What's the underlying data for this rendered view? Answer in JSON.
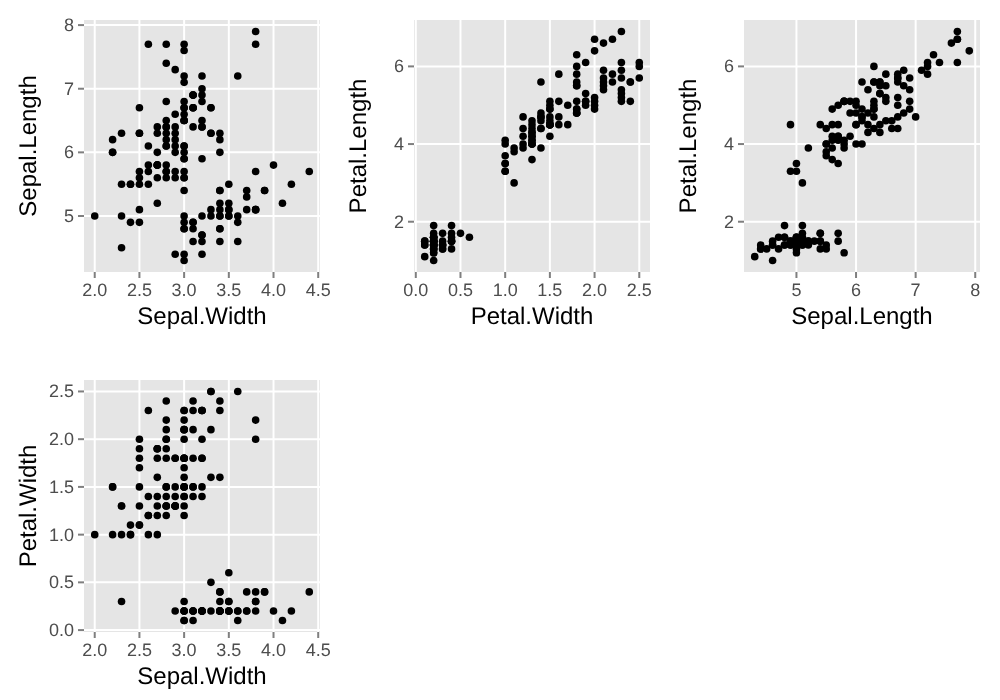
{
  "chart_data": [
    {
      "type": "scatter",
      "xlabel": "Sepal.Width",
      "ylabel": "Sepal.Length",
      "grid": true,
      "marker": "circle",
      "xlim": [
        1.88,
        4.52
      ],
      "ylim": [
        4.12,
        8.08
      ],
      "xticks": [
        {
          "value": 2,
          "label": "2.0"
        },
        {
          "value": 2.5,
          "label": "2.5"
        },
        {
          "value": 3,
          "label": "3.0"
        },
        {
          "value": 3.5,
          "label": "3.5"
        },
        {
          "value": 4,
          "label": "4.0"
        },
        {
          "value": 4.5,
          "label": "4.5"
        }
      ],
      "yticks": [
        5,
        6,
        7,
        8
      ],
      "series": [
        {
          "color": "#000000",
          "x": [
            3.5,
            3.0,
            3.2,
            3.1,
            3.6,
            3.9,
            3.4,
            3.4,
            2.9,
            3.1,
            3.7,
            3.4,
            3.0,
            3.0,
            4.0,
            4.4,
            3.9,
            3.5,
            3.8,
            3.8,
            3.4,
            3.7,
            3.6,
            3.3,
            3.4,
            3.0,
            3.4,
            3.5,
            3.4,
            3.2,
            3.1,
            3.4,
            4.1,
            4.2,
            3.1,
            3.2,
            3.5,
            3.6,
            3.0,
            3.4,
            3.5,
            2.3,
            3.2,
            3.5,
            3.8,
            3.0,
            3.8,
            3.2,
            3.7,
            3.3,
            3.2,
            3.2,
            3.1,
            2.3,
            2.8,
            2.8,
            3.3,
            2.4,
            2.9,
            2.7,
            2.0,
            3.0,
            2.2,
            2.9,
            2.9,
            3.1,
            3.0,
            2.7,
            2.2,
            2.5,
            3.2,
            2.8,
            2.5,
            2.8,
            2.9,
            3.0,
            2.8,
            3.0,
            2.9,
            2.6,
            2.4,
            2.4,
            2.7,
            2.7,
            3.0,
            3.4,
            3.1,
            2.3,
            3.0,
            2.5,
            2.6,
            3.0,
            2.6,
            2.3,
            2.7,
            3.0,
            2.9,
            2.9,
            2.5,
            2.8,
            3.3,
            2.7,
            3.0,
            2.9,
            3.0,
            3.0,
            2.5,
            2.9,
            2.5,
            3.6,
            3.2,
            2.7,
            3.0,
            2.5,
            2.8,
            3.2,
            3.0,
            3.8,
            2.6,
            2.2,
            3.2,
            2.8,
            2.8,
            2.7,
            3.3,
            3.2,
            2.8,
            3.0,
            2.8,
            3.0,
            2.8,
            3.8,
            2.8,
            2.8,
            2.6,
            3.0,
            3.4,
            3.1,
            3.0,
            3.1,
            3.1,
            3.1,
            2.7,
            3.2,
            3.3,
            3.0,
            2.5,
            3.0,
            3.4,
            3.0
          ],
          "values": [
            5.1,
            4.9,
            4.7,
            4.6,
            5.0,
            5.4,
            4.6,
            5.0,
            4.4,
            4.9,
            5.4,
            4.8,
            4.8,
            4.3,
            5.8,
            5.7,
            5.4,
            5.1,
            5.7,
            5.1,
            5.4,
            5.1,
            4.6,
            5.1,
            4.8,
            5.0,
            5.0,
            5.2,
            5.2,
            4.7,
            4.8,
            5.4,
            5.2,
            5.5,
            4.9,
            5.0,
            5.5,
            4.9,
            4.4,
            5.1,
            5.0,
            4.5,
            4.4,
            5.0,
            5.1,
            4.8,
            5.1,
            4.6,
            5.3,
            5.0,
            7.0,
            6.4,
            6.9,
            5.5,
            6.5,
            5.7,
            6.3,
            4.9,
            6.6,
            5.2,
            5.0,
            5.9,
            6.0,
            6.1,
            5.6,
            6.7,
            5.6,
            5.8,
            6.2,
            5.6,
            5.9,
            6.1,
            6.3,
            6.1,
            6.4,
            6.6,
            6.8,
            6.7,
            6.0,
            5.7,
            5.5,
            5.5,
            5.8,
            6.0,
            5.4,
            6.0,
            6.7,
            6.3,
            5.6,
            5.5,
            5.5,
            6.1,
            5.8,
            5.0,
            5.6,
            5.7,
            5.7,
            6.2,
            5.1,
            5.7,
            6.3,
            5.8,
            7.1,
            6.3,
            6.5,
            7.6,
            4.9,
            7.3,
            6.7,
            7.2,
            6.5,
            6.4,
            6.8,
            5.7,
            5.8,
            6.4,
            6.5,
            7.7,
            7.7,
            6.0,
            6.9,
            5.6,
            7.7,
            6.3,
            6.7,
            7.2,
            6.2,
            6.1,
            6.4,
            7.2,
            7.4,
            7.9,
            6.4,
            6.3,
            6.1,
            7.7,
            6.3,
            6.4,
            6.0,
            6.9,
            6.7,
            6.9,
            5.8,
            6.8,
            6.7,
            6.7,
            6.3,
            6.5,
            6.2,
            5.9
          ]
        }
      ]
    },
    {
      "type": "scatter",
      "xlabel": "Petal.Width",
      "ylabel": "Petal.Length",
      "grid": true,
      "marker": "circle",
      "xlim": [
        -0.02,
        2.62
      ],
      "ylim": [
        0.705,
        7.195
      ],
      "xticks": [
        {
          "value": 0,
          "label": "0.0"
        },
        {
          "value": 0.5,
          "label": "0.5"
        },
        {
          "value": 1,
          "label": "1.0"
        },
        {
          "value": 1.5,
          "label": "1.5"
        },
        {
          "value": 2,
          "label": "2.0"
        },
        {
          "value": 2.5,
          "label": "2.5"
        }
      ],
      "yticks": [
        2,
        4,
        6
      ],
      "series": [
        {
          "color": "#000000",
          "x": [
            0.2,
            0.2,
            0.2,
            0.2,
            0.2,
            0.4,
            0.3,
            0.2,
            0.2,
            0.1,
            0.2,
            0.2,
            0.1,
            0.1,
            0.2,
            0.4,
            0.4,
            0.3,
            0.3,
            0.3,
            0.2,
            0.4,
            0.2,
            0.5,
            0.2,
            0.2,
            0.4,
            0.2,
            0.2,
            0.2,
            0.2,
            0.4,
            0.1,
            0.2,
            0.2,
            0.2,
            0.2,
            0.1,
            0.2,
            0.2,
            0.3,
            0.3,
            0.2,
            0.6,
            0.4,
            0.3,
            0.2,
            0.2,
            0.2,
            0.2,
            1.4,
            1.5,
            1.5,
            1.3,
            1.5,
            1.3,
            1.6,
            1.0,
            1.3,
            1.4,
            1.0,
            1.5,
            1.0,
            1.4,
            1.3,
            1.4,
            1.5,
            1.0,
            1.5,
            1.1,
            1.8,
            1.3,
            1.5,
            1.2,
            1.3,
            1.4,
            1.4,
            1.7,
            1.5,
            1.0,
            1.1,
            1.0,
            1.2,
            1.6,
            1.5,
            1.6,
            1.5,
            1.3,
            1.3,
            1.3,
            1.2,
            1.4,
            1.2,
            1.0,
            1.3,
            1.2,
            1.3,
            1.3,
            1.1,
            1.3,
            2.5,
            1.9,
            2.1,
            1.8,
            2.2,
            2.1,
            1.7,
            1.8,
            1.8,
            2.5,
            2.0,
            1.9,
            2.1,
            2.0,
            2.4,
            2.3,
            1.8,
            2.2,
            2.3,
            1.5,
            2.3,
            2.0,
            2.0,
            1.8,
            2.1,
            1.8,
            1.8,
            1.8,
            2.1,
            1.6,
            1.9,
            2.0,
            2.2,
            1.5,
            1.4,
            2.3,
            2.4,
            1.8,
            1.8,
            2.1,
            2.4,
            2.3,
            1.9,
            2.3,
            2.5,
            2.3,
            1.9,
            2.0,
            2.3,
            1.8
          ],
          "values": [
            1.4,
            1.4,
            1.3,
            1.5,
            1.4,
            1.7,
            1.4,
            1.5,
            1.4,
            1.5,
            1.5,
            1.6,
            1.4,
            1.1,
            1.2,
            1.5,
            1.3,
            1.4,
            1.7,
            1.5,
            1.7,
            1.5,
            1.0,
            1.7,
            1.9,
            1.6,
            1.6,
            1.5,
            1.4,
            1.6,
            1.6,
            1.5,
            1.5,
            1.4,
            1.5,
            1.2,
            1.3,
            1.4,
            1.3,
            1.5,
            1.3,
            1.3,
            1.3,
            1.6,
            1.9,
            1.4,
            1.6,
            1.4,
            1.5,
            1.4,
            4.7,
            4.5,
            4.9,
            4.0,
            4.6,
            4.5,
            4.7,
            3.3,
            4.6,
            3.9,
            3.5,
            4.2,
            4.0,
            4.7,
            3.6,
            4.4,
            4.5,
            4.1,
            4.5,
            3.9,
            4.8,
            4.0,
            4.9,
            4.7,
            4.3,
            4.4,
            4.8,
            5.0,
            4.5,
            3.5,
            3.8,
            3.7,
            3.9,
            5.1,
            4.5,
            4.5,
            4.7,
            4.4,
            4.1,
            4.0,
            4.4,
            4.6,
            4.0,
            3.3,
            4.2,
            4.2,
            4.2,
            4.3,
            3.0,
            4.1,
            6.0,
            5.1,
            5.9,
            5.6,
            5.8,
            6.6,
            4.5,
            6.3,
            5.8,
            6.1,
            5.1,
            5.3,
            5.5,
            5.0,
            5.1,
            5.3,
            5.5,
            6.7,
            6.9,
            5.0,
            5.7,
            4.9,
            6.7,
            4.9,
            5.7,
            6.0,
            4.8,
            4.9,
            5.6,
            5.8,
            6.1,
            6.4,
            5.6,
            5.1,
            5.6,
            6.1,
            5.6,
            5.5,
            4.8,
            5.4,
            5.6,
            5.1,
            5.1,
            5.9,
            5.7,
            5.2,
            5.0,
            5.2,
            5.4,
            5.1
          ]
        }
      ]
    },
    {
      "type": "scatter",
      "xlabel": "Sepal.Length",
      "ylabel": "Petal.Length",
      "grid": true,
      "marker": "circle",
      "xlim": [
        4.12,
        8.08
      ],
      "ylim": [
        0.705,
        7.195
      ],
      "xticks": [
        5,
        6,
        7,
        8
      ],
      "yticks": [
        2,
        4,
        6
      ],
      "series": [
        {
          "color": "#000000",
          "x": [
            5.1,
            4.9,
            4.7,
            4.6,
            5.0,
            5.4,
            4.6,
            5.0,
            4.4,
            4.9,
            5.4,
            4.8,
            4.8,
            4.3,
            5.8,
            5.7,
            5.4,
            5.1,
            5.7,
            5.1,
            5.4,
            4.6,
            5.1,
            4.8,
            5.0,
            5.0,
            5.2,
            5.2,
            4.7,
            4.8,
            5.4,
            5.2,
            5.5,
            4.9,
            5.0,
            5.5,
            4.9,
            4.4,
            5.0,
            4.5,
            4.4,
            5.0,
            5.1,
            4.8,
            5.1,
            4.6,
            5.3,
            7.0,
            6.4,
            6.9,
            5.5,
            6.5,
            5.7,
            6.3,
            4.9,
            6.6,
            5.2,
            5.0,
            5.9,
            6.0,
            6.1,
            5.6,
            6.7,
            5.6,
            5.8,
            6.2,
            5.6,
            5.9,
            6.1,
            6.3,
            6.1,
            6.4,
            6.6,
            6.8,
            6.7,
            6.0,
            5.7,
            5.5,
            5.5,
            5.8,
            6.0,
            5.4,
            6.0,
            6.7,
            6.3,
            5.6,
            5.5,
            5.5,
            6.1,
            5.8,
            5.0,
            5.6,
            5.7,
            5.7,
            6.2,
            5.1,
            5.7,
            6.3,
            5.8,
            7.1,
            6.3,
            6.5,
            7.6,
            4.9,
            7.3,
            6.7,
            7.2,
            6.5,
            6.4,
            6.8,
            5.7,
            5.8,
            6.4,
            6.5,
            7.7,
            7.7,
            6.0,
            6.9,
            5.6,
            7.7,
            6.3,
            6.7,
            7.2,
            6.2,
            6.1,
            6.4,
            7.2,
            7.4,
            7.9,
            6.4,
            6.3,
            6.1,
            7.7,
            6.3,
            6.4,
            6.0,
            6.9,
            6.7,
            6.9,
            5.8,
            6.8,
            6.7,
            6.7,
            6.3,
            6.5,
            6.2,
            5.9
          ],
          "values": [
            1.4,
            1.4,
            1.3,
            1.5,
            1.4,
            1.7,
            1.4,
            1.5,
            1.4,
            1.5,
            1.5,
            1.6,
            1.4,
            1.1,
            1.2,
            1.5,
            1.3,
            1.4,
            1.7,
            1.5,
            1.7,
            1.0,
            1.7,
            1.9,
            1.6,
            1.6,
            1.5,
            1.4,
            1.6,
            1.6,
            1.5,
            1.5,
            1.4,
            1.5,
            1.2,
            1.3,
            1.4,
            1.3,
            1.3,
            1.3,
            1.3,
            1.6,
            1.9,
            1.4,
            1.6,
            1.4,
            1.5,
            4.7,
            4.5,
            4.9,
            4.0,
            4.6,
            4.5,
            4.7,
            3.3,
            4.6,
            3.9,
            3.5,
            4.2,
            4.0,
            4.7,
            3.6,
            4.4,
            4.5,
            4.1,
            4.5,
            3.9,
            4.8,
            4.0,
            4.9,
            4.7,
            4.3,
            4.4,
            4.8,
            5.0,
            4.5,
            3.5,
            3.8,
            3.7,
            3.9,
            5.1,
            4.5,
            4.5,
            4.7,
            4.4,
            4.1,
            4.0,
            4.4,
            4.6,
            4.0,
            3.3,
            4.2,
            4.2,
            4.2,
            4.3,
            3.0,
            4.1,
            6.0,
            5.1,
            5.9,
            5.6,
            5.8,
            6.6,
            4.5,
            6.3,
            5.8,
            6.1,
            5.1,
            5.3,
            5.5,
            5.0,
            5.1,
            5.3,
            5.5,
            6.7,
            6.9,
            5.0,
            5.7,
            4.9,
            6.7,
            4.9,
            5.7,
            6.0,
            4.8,
            4.9,
            5.6,
            5.8,
            6.1,
            6.4,
            5.6,
            5.1,
            5.6,
            6.1,
            5.6,
            5.5,
            4.8,
            5.4,
            5.6,
            5.1,
            5.1,
            5.9,
            5.7,
            5.2,
            5.0,
            5.2,
            5.4,
            5.1
          ]
        }
      ]
    },
    {
      "type": "scatter",
      "xlabel": "Sepal.Width",
      "ylabel": "Petal.Width",
      "grid": true,
      "marker": "circle",
      "xlim": [
        1.88,
        4.52
      ],
      "ylim": [
        -0.02,
        2.62
      ],
      "xticks": [
        {
          "value": 2,
          "label": "2.0"
        },
        {
          "value": 2.5,
          "label": "2.5"
        },
        {
          "value": 3,
          "label": "3.0"
        },
        {
          "value": 3.5,
          "label": "3.5"
        },
        {
          "value": 4,
          "label": "4.0"
        },
        {
          "value": 4.5,
          "label": "4.5"
        }
      ],
      "yticks": [
        {
          "value": 0,
          "label": "0.0"
        },
        {
          "value": 0.5,
          "label": "0.5"
        },
        {
          "value": 1,
          "label": "1.0"
        },
        {
          "value": 1.5,
          "label": "1.5"
        },
        {
          "value": 2,
          "label": "2.0"
        },
        {
          "value": 2.5,
          "label": "2.5"
        }
      ],
      "series": [
        {
          "color": "#000000",
          "x": [
            3.5,
            3.0,
            3.2,
            3.1,
            3.6,
            3.9,
            3.4,
            3.4,
            2.9,
            3.1,
            3.7,
            3.4,
            3.0,
            3.0,
            4.0,
            4.4,
            3.9,
            3.5,
            3.8,
            3.8,
            3.4,
            3.7,
            3.6,
            3.3,
            3.4,
            3.0,
            3.4,
            3.5,
            3.4,
            3.2,
            3.1,
            3.4,
            4.1,
            4.2,
            3.1,
            3.2,
            3.5,
            3.6,
            3.0,
            3.4,
            3.5,
            2.3,
            3.2,
            3.5,
            3.8,
            3.0,
            3.8,
            3.2,
            3.7,
            3.3,
            3.2,
            3.2,
            3.1,
            2.3,
            2.8,
            2.8,
            3.3,
            2.4,
            2.9,
            2.7,
            2.0,
            3.0,
            2.2,
            2.9,
            2.9,
            3.1,
            3.0,
            2.7,
            2.2,
            2.5,
            3.2,
            2.8,
            2.5,
            2.8,
            2.9,
            3.0,
            2.8,
            3.0,
            2.9,
            2.6,
            2.4,
            2.4,
            2.7,
            2.7,
            3.0,
            3.4,
            3.1,
            2.3,
            3.0,
            2.5,
            2.6,
            3.0,
            2.6,
            2.3,
            2.7,
            3.0,
            2.9,
            2.9,
            2.5,
            2.8,
            3.3,
            2.7,
            3.0,
            2.9,
            3.0,
            3.0,
            2.5,
            2.9,
            2.5,
            3.6,
            3.2,
            2.7,
            3.0,
            2.5,
            2.8,
            3.2,
            3.0,
            3.8,
            2.6,
            2.2,
            3.2,
            2.8,
            2.8,
            2.7,
            3.3,
            3.2,
            2.8,
            3.0,
            2.8,
            3.0,
            2.8,
            3.8,
            2.8,
            2.8,
            2.6,
            3.0,
            3.4,
            3.1,
            3.0,
            3.1,
            3.1,
            3.1,
            2.7,
            3.2,
            3.3,
            3.0,
            2.5,
            3.0,
            3.4,
            3.0
          ],
          "values": [
            0.2,
            0.2,
            0.2,
            0.2,
            0.2,
            0.4,
            0.3,
            0.2,
            0.2,
            0.1,
            0.2,
            0.2,
            0.1,
            0.1,
            0.2,
            0.4,
            0.4,
            0.3,
            0.3,
            0.3,
            0.2,
            0.4,
            0.2,
            0.5,
            0.2,
            0.2,
            0.4,
            0.2,
            0.2,
            0.2,
            0.2,
            0.4,
            0.1,
            0.2,
            0.2,
            0.2,
            0.2,
            0.1,
            0.2,
            0.2,
            0.3,
            0.3,
            0.2,
            0.6,
            0.4,
            0.3,
            0.2,
            0.2,
            0.2,
            0.2,
            1.4,
            1.5,
            1.5,
            1.3,
            1.5,
            1.3,
            1.6,
            1.0,
            1.3,
            1.4,
            1.0,
            1.5,
            1.0,
            1.4,
            1.3,
            1.4,
            1.5,
            1.0,
            1.5,
            1.1,
            1.8,
            1.3,
            1.5,
            1.2,
            1.3,
            1.4,
            1.4,
            1.7,
            1.5,
            1.0,
            1.1,
            1.0,
            1.2,
            1.6,
            1.5,
            1.6,
            1.5,
            1.3,
            1.3,
            1.3,
            1.2,
            1.4,
            1.2,
            1.0,
            1.3,
            1.2,
            1.3,
            1.3,
            1.1,
            1.3,
            2.5,
            1.9,
            2.1,
            1.8,
            2.2,
            2.1,
            1.7,
            1.8,
            1.8,
            2.5,
            2.0,
            1.9,
            2.1,
            2.0,
            2.4,
            2.3,
            1.8,
            2.2,
            2.3,
            1.5,
            2.3,
            2.0,
            2.0,
            1.8,
            2.1,
            1.8,
            1.8,
            1.8,
            2.1,
            1.6,
            1.9,
            2.0,
            2.2,
            1.5,
            1.4,
            2.3,
            2.4,
            1.8,
            1.8,
            2.1,
            2.4,
            2.3,
            1.9,
            2.3,
            2.5,
            2.3,
            1.9,
            2.0,
            2.3,
            1.8
          ]
        }
      ]
    }
  ]
}
